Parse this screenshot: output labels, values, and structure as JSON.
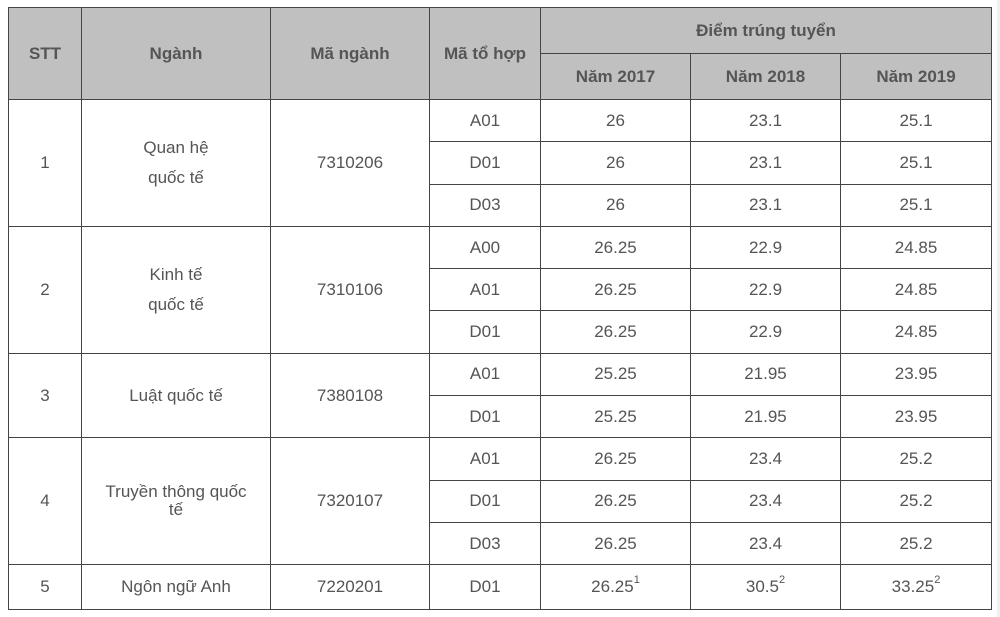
{
  "header": {
    "stt": "STT",
    "nganh": "Ngành",
    "ma_nganh": "Mã ngành",
    "ma_to_hop": "Mã tổ hợp",
    "diem": "Điểm trúng tuyển",
    "years": [
      "Năm 2017",
      "Năm 2018",
      "Năm 2019"
    ]
  },
  "rows": [
    {
      "stt": "1",
      "nganh_l1": "Quan hệ",
      "nganh_l2": "quốc tế",
      "ma": "7310206",
      "combos": [
        {
          "code": "A01",
          "v": [
            "26",
            "23.1",
            "25.1"
          ]
        },
        {
          "code": "D01",
          "v": [
            "26",
            "23.1",
            "25.1"
          ]
        },
        {
          "code": "D03",
          "v": [
            "26",
            "23.1",
            "25.1"
          ]
        }
      ]
    },
    {
      "stt": "2",
      "nganh_l1": "Kinh tế",
      "nganh_l2": "quốc tế",
      "ma": "7310106",
      "combos": [
        {
          "code": "A00",
          "v": [
            "26.25",
            "22.9",
            "24.85"
          ]
        },
        {
          "code": "A01",
          "v": [
            "26.25",
            "22.9",
            "24.85"
          ]
        },
        {
          "code": "D01",
          "v": [
            "26.25",
            "22.9",
            "24.85"
          ]
        }
      ]
    },
    {
      "stt": "3",
      "nganh_l1": "Luật quốc tế",
      "ma": "7380108",
      "combos": [
        {
          "code": "A01",
          "v": [
            "25.25",
            "21.95",
            "23.95"
          ]
        },
        {
          "code": "D01",
          "v": [
            "25.25",
            "21.95",
            "23.95"
          ]
        }
      ]
    },
    {
      "stt": "4",
      "nganh_l1": "Truyền thông quốc",
      "nganh_l2": "tế",
      "ma": "7320107",
      "combos": [
        {
          "code": "A01",
          "v": [
            "26.25",
            "23.4",
            "25.2"
          ]
        },
        {
          "code": "D01",
          "v": [
            "26.25",
            "23.4",
            "25.2"
          ]
        },
        {
          "code": "D03",
          "v": [
            "26.25",
            "23.4",
            "25.2"
          ]
        }
      ]
    },
    {
      "stt": "5",
      "nganh_l1": "Ngôn ngữ Anh",
      "ma": "7220201",
      "combos": [
        {
          "code": "D01",
          "v": [
            "26.25",
            "30.5",
            "33.25"
          ],
          "sup": [
            "1",
            "2",
            "2"
          ]
        }
      ]
    }
  ]
}
